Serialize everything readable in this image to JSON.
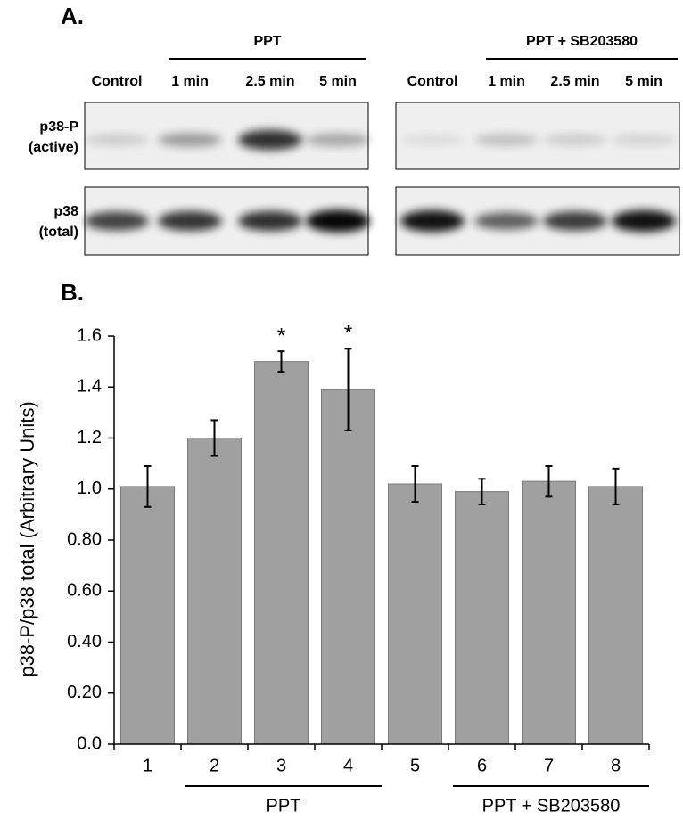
{
  "blot": {
    "panel_label": "A.",
    "panels": [
      {
        "group": "PPT",
        "lanes": [
          "Control",
          "1 min",
          "2.5 min",
          "5 min"
        ]
      },
      {
        "group": "PPT + SB203580",
        "lanes": [
          "Control",
          "1 min",
          "2.5 min",
          "5 min"
        ]
      }
    ],
    "rows": [
      {
        "label_lines": [
          "p38-P",
          "(active)"
        ]
      },
      {
        "label_lines": [
          "p38",
          "(total)"
        ]
      }
    ]
  },
  "chart_data": {
    "type": "bar",
    "panel_label": "B.",
    "y_label": "p38-P/p38 total (Arbitrary Units)",
    "categories": [
      "1",
      "2",
      "3",
      "4",
      "5",
      "6",
      "7",
      "8"
    ],
    "values": [
      1.01,
      1.2,
      1.5,
      1.39,
      1.02,
      0.99,
      1.03,
      1.01
    ],
    "errors": [
      0.08,
      0.07,
      0.04,
      0.16,
      0.07,
      0.05,
      0.06,
      0.07
    ],
    "color": "#a0a0a0",
    "ylim": [
      0,
      1.6
    ],
    "yticks": [
      {
        "value": 0,
        "label": "0.0"
      },
      {
        "value": 0.2,
        "label": "0.20"
      },
      {
        "value": 0.4,
        "label": "0.40"
      },
      {
        "value": 0.6,
        "label": "0.60"
      },
      {
        "value": 0.8,
        "label": "0.80"
      },
      {
        "value": 1,
        "label": "1.0"
      },
      1.2,
      1.4,
      1.6
    ],
    "annotations": [
      {
        "text": "*",
        "x": "3"
      },
      {
        "text": "*",
        "x": "4"
      }
    ],
    "groups": [
      {
        "label": "PPT",
        "categories": [
          "2",
          "3",
          "4"
        ]
      },
      {
        "label": "PPT + SB203580",
        "categories": [
          "6",
          "7",
          "8"
        ]
      }
    ]
  }
}
